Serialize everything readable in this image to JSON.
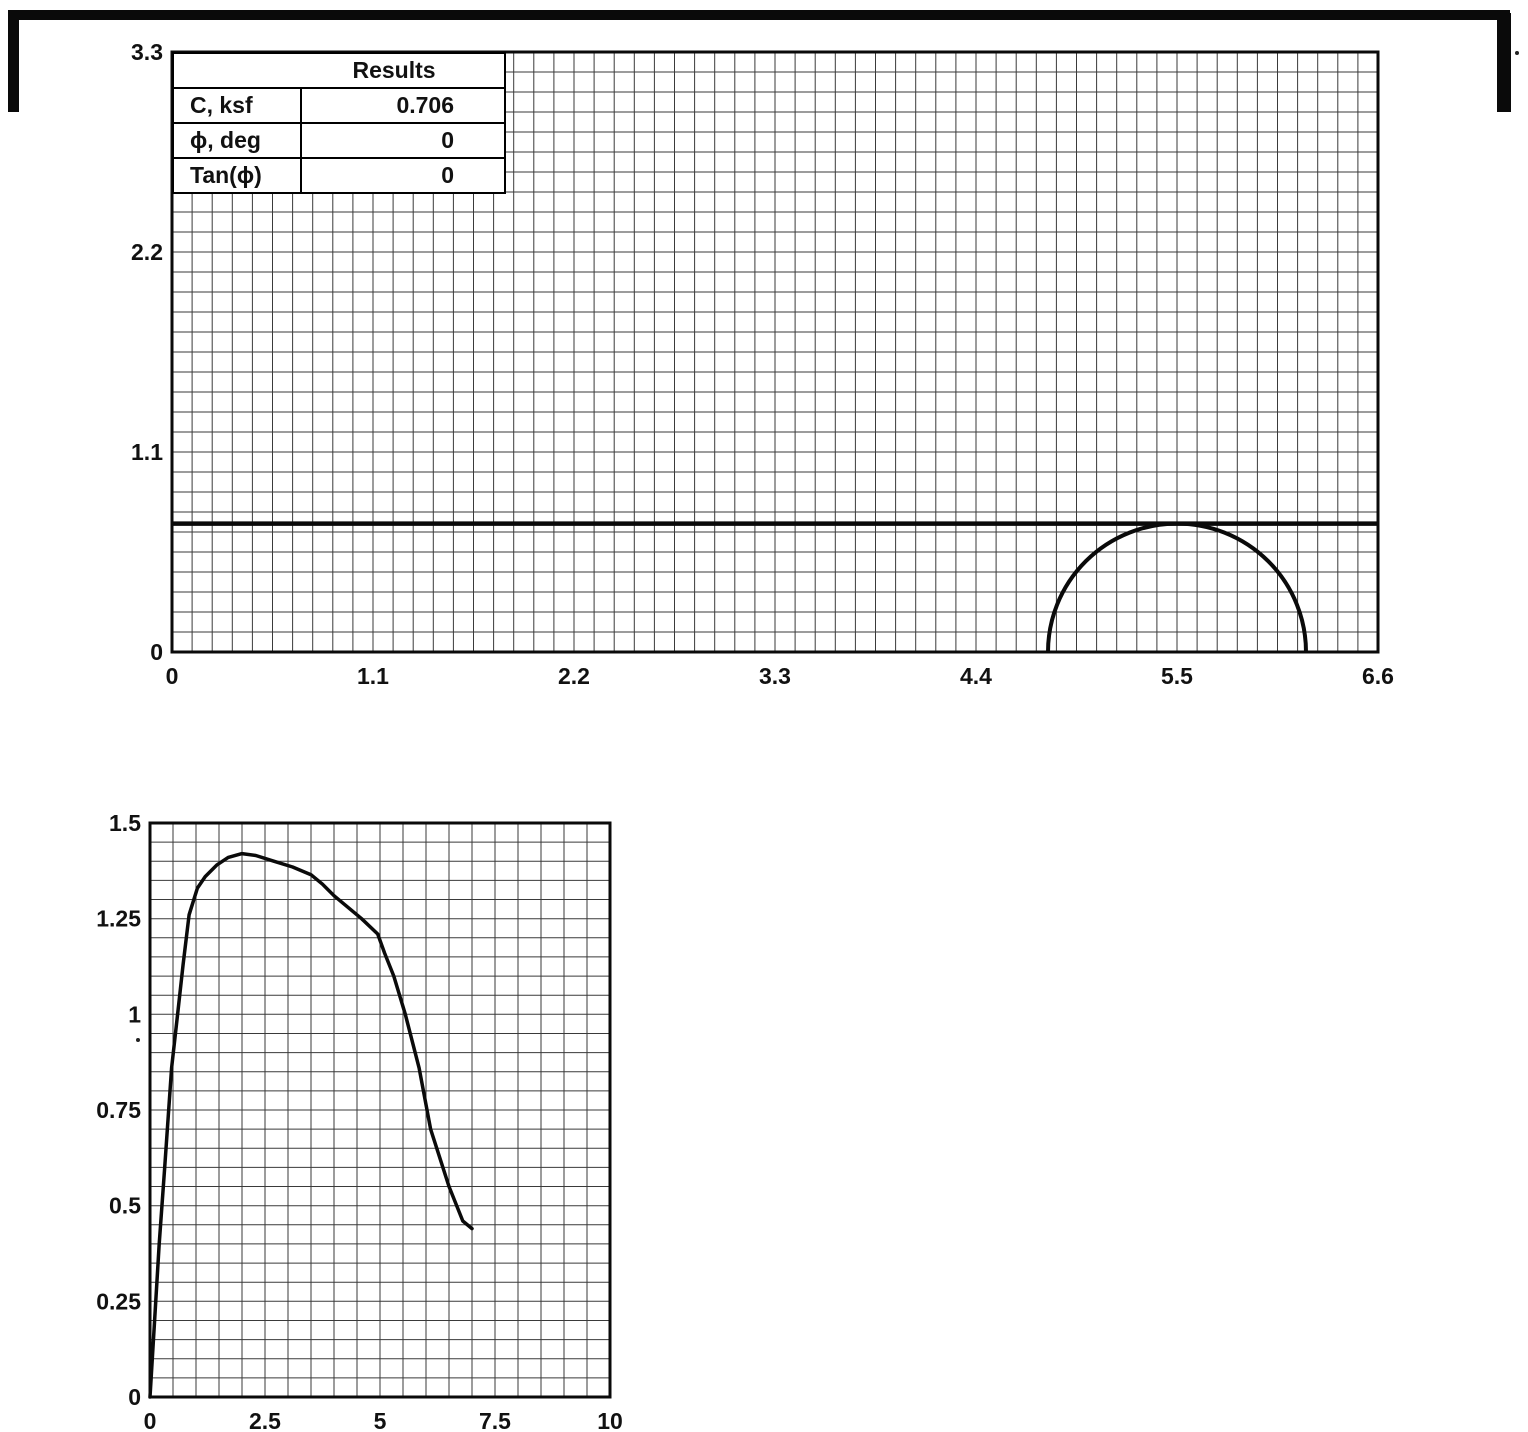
{
  "results_table": {
    "header": "Results",
    "rows": [
      {
        "label": "C, ksf",
        "value": "0.706"
      },
      {
        "label": "ϕ, deg",
        "value": "0"
      },
      {
        "label": "Tan(ϕ)",
        "value": "0"
      }
    ]
  },
  "colors": {
    "ink": "#0a0a0a",
    "grid_minor": "#3a3a3a",
    "background": "#ffffff"
  },
  "chart_data": [
    {
      "id": "mohr",
      "type": "line",
      "title": "",
      "xlabel": "",
      "ylabel": "",
      "description": "Mohr circle tangent to horizontal failure envelope (phi = 0, c = 0.706 ksf)",
      "xlim": [
        0,
        6.6
      ],
      "ylim": [
        0,
        3.3
      ],
      "grid_on": true,
      "grid_step": {
        "x": 0.11,
        "y": 0.11
      },
      "x_ticks": [
        {
          "v": 0,
          "label": "0"
        },
        {
          "v": 1.1,
          "label": "1.1"
        },
        {
          "v": 2.2,
          "label": "2.2"
        },
        {
          "v": 3.3,
          "label": "3.3"
        },
        {
          "v": 4.4,
          "label": "4.4"
        },
        {
          "v": 5.5,
          "label": "5.5"
        },
        {
          "v": 6.6,
          "label": "6.6"
        }
      ],
      "y_ticks": [
        {
          "v": 0,
          "label": "0"
        },
        {
          "v": 1.1,
          "label": "1.1"
        },
        {
          "v": 2.2,
          "label": "2.2"
        },
        {
          "v": 3.3,
          "label": "3.3"
        }
      ],
      "series": [
        {
          "name": "failure-envelope-line",
          "kind": "hline",
          "y": 0.706,
          "width": 4.5
        },
        {
          "name": "mohr-circle",
          "kind": "semicircle",
          "center_x": 5.5,
          "radius": 0.706,
          "x_start": 4.794,
          "x_end": 6.206,
          "width": 4
        }
      ]
    },
    {
      "id": "stress_strain",
      "type": "line",
      "title": "",
      "xlabel": "",
      "ylabel": "",
      "description": "Stress-strain curve peaking near 1.42 at strain ~2, ending near (7.0, 0.44)",
      "xlim": [
        0,
        10
      ],
      "ylim": [
        0,
        1.5
      ],
      "grid_on": true,
      "grid_step": {
        "x": 0.5,
        "y": 0.05
      },
      "x_ticks": [
        {
          "v": 0,
          "label": "0"
        },
        {
          "v": 2.5,
          "label": "2.5"
        },
        {
          "v": 5,
          "label": "5"
        },
        {
          "v": 7.5,
          "label": "7.5"
        },
        {
          "v": 10,
          "label": "10"
        }
      ],
      "y_ticks": [
        {
          "v": 0,
          "label": "0"
        },
        {
          "v": 0.25,
          "label": "0.25"
        },
        {
          "v": 0.5,
          "label": "0.5"
        },
        {
          "v": 0.75,
          "label": "0.75"
        },
        {
          "v": 1,
          "label": "1"
        },
        {
          "v": 1.25,
          "label": "1.25"
        },
        {
          "v": 1.5,
          "label": "1.5"
        }
      ],
      "series": [
        {
          "name": "stress-strain-curve",
          "kind": "line",
          "width": 3.5,
          "points": [
            [
              0,
              0
            ],
            [
              0.1,
              0.2
            ],
            [
              0.2,
              0.4
            ],
            [
              0.32,
              0.6
            ],
            [
              0.47,
              0.86
            ],
            [
              0.6,
              1.0
            ],
            [
              0.72,
              1.13
            ],
            [
              0.85,
              1.26
            ],
            [
              1.03,
              1.33
            ],
            [
              1.2,
              1.36
            ],
            [
              1.45,
              1.39
            ],
            [
              1.7,
              1.41
            ],
            [
              2.0,
              1.42
            ],
            [
              2.3,
              1.415
            ],
            [
              2.7,
              1.4
            ],
            [
              3.1,
              1.385
            ],
            [
              3.5,
              1.365
            ],
            [
              3.75,
              1.34
            ],
            [
              4.0,
              1.31
            ],
            [
              4.3,
              1.28
            ],
            [
              4.6,
              1.25
            ],
            [
              4.95,
              1.21
            ],
            [
              5.1,
              1.16
            ],
            [
              5.3,
              1.1
            ],
            [
              5.55,
              1.0
            ],
            [
              5.85,
              0.86
            ],
            [
              6.1,
              0.7
            ],
            [
              6.5,
              0.55
            ],
            [
              6.8,
              0.46
            ],
            [
              7.0,
              0.44
            ]
          ]
        }
      ]
    }
  ]
}
